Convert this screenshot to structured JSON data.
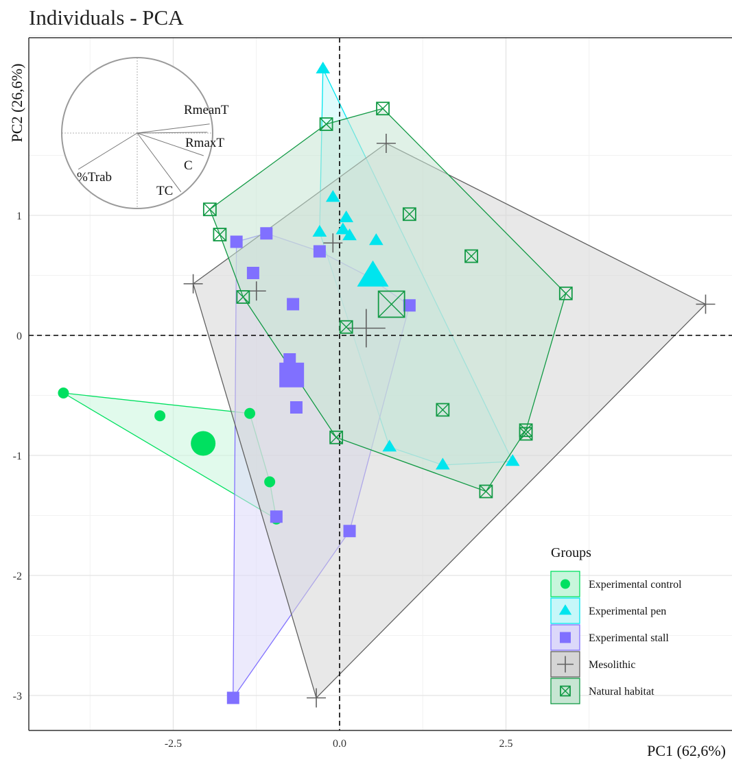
{
  "title": "Individuals - PCA",
  "chart_data": {
    "type": "scatter",
    "title": "Individuals - PCA",
    "xlabel": "PC1 (62,6%)",
    "ylabel": "PC2 (26,6%)",
    "xlim": [
      -4.6,
      6.0
    ],
    "ylim": [
      -3.25,
      2.4
    ],
    "xticks": [
      -2.5,
      0.0,
      2.5
    ],
    "xtick_labels": [
      "-2.5",
      "0.0",
      "2.5"
    ],
    "yticks": [
      1,
      0,
      -1,
      -2,
      -3
    ],
    "ytick_labels": [
      "1",
      "0",
      "-1",
      "-2",
      "-3"
    ],
    "grid": true,
    "legend_title": "Groups",
    "legend_position": "bottom-right",
    "series": [
      {
        "name": "Experimental control",
        "marker": "circle",
        "color": "#00e060",
        "fill": "#c8f6dc",
        "points": [
          [
            -4.15,
            -0.48
          ],
          [
            -2.7,
            -0.67
          ],
          [
            -1.35,
            -0.65
          ],
          [
            -1.05,
            -1.22
          ],
          [
            -0.95,
            -1.53
          ]
        ],
        "hull": [
          [
            -4.15,
            -0.48
          ],
          [
            -1.35,
            -0.65
          ],
          [
            -1.05,
            -1.22
          ],
          [
            -0.95,
            -1.53
          ]
        ],
        "centroid": [
          -2.05,
          -0.9
        ]
      },
      {
        "name": "Experimental pen",
        "marker": "triangle",
        "color": "#00e5ee",
        "fill": "#c6f7f9",
        "points": [
          [
            -0.25,
            2.22
          ],
          [
            -0.1,
            1.15
          ],
          [
            -0.3,
            0.86
          ],
          [
            0.1,
            0.98
          ],
          [
            0.05,
            0.88
          ],
          [
            0.15,
            0.83
          ],
          [
            0.55,
            0.79
          ],
          [
            0.75,
            -0.93
          ],
          [
            1.55,
            -1.08
          ],
          [
            2.6,
            -1.05
          ]
        ],
        "hull": [
          [
            -0.25,
            2.22
          ],
          [
            2.6,
            -1.05
          ],
          [
            1.55,
            -1.08
          ],
          [
            0.75,
            -0.93
          ],
          [
            -0.3,
            0.86
          ]
        ],
        "centroid": [
          0.5,
          0.49
        ]
      },
      {
        "name": "Experimental stall",
        "marker": "square",
        "color": "#8070ff",
        "fill": "#dcd8fa",
        "points": [
          [
            -1.55,
            0.78
          ],
          [
            -1.1,
            0.85
          ],
          [
            -1.3,
            0.52
          ],
          [
            -0.3,
            0.7
          ],
          [
            -0.7,
            0.26
          ],
          [
            1.05,
            0.25
          ],
          [
            -0.75,
            -0.2
          ],
          [
            -0.65,
            -0.6
          ],
          [
            -0.95,
            -1.51
          ],
          [
            0.15,
            -1.63
          ],
          [
            -1.6,
            -3.02
          ]
        ],
        "hull": [
          [
            -1.55,
            0.78
          ],
          [
            -1.1,
            0.85
          ],
          [
            -0.3,
            0.7
          ],
          [
            0.4,
            0.5
          ],
          [
            1.05,
            0.25
          ],
          [
            0.15,
            -1.63
          ],
          [
            -1.6,
            -3.02
          ]
        ],
        "centroid": [
          -0.72,
          -0.33
        ]
      },
      {
        "name": "Mesolithic",
        "marker": "plus",
        "color": "#606060",
        "fill": "#d5d5d5",
        "points": [
          [
            0.7,
            1.6
          ],
          [
            -2.2,
            0.43
          ],
          [
            -0.1,
            0.77
          ],
          [
            -1.25,
            0.37
          ],
          [
            5.5,
            0.26
          ],
          [
            -0.35,
            -3.02
          ]
        ],
        "hull": [
          [
            0.7,
            1.6
          ],
          [
            5.5,
            0.26
          ],
          [
            -0.35,
            -3.02
          ],
          [
            -2.2,
            0.43
          ]
        ],
        "centroid": [
          0.4,
          0.06
        ]
      },
      {
        "name": "Natural habitat",
        "marker": "boxcross",
        "color": "#119944",
        "fill": "#c7e6d3",
        "points": [
          [
            0.65,
            1.89
          ],
          [
            -0.2,
            1.76
          ],
          [
            -1.95,
            1.05
          ],
          [
            -1.8,
            0.84
          ],
          [
            1.05,
            1.01
          ],
          [
            1.98,
            0.66
          ],
          [
            3.4,
            0.35
          ],
          [
            -1.45,
            0.32
          ],
          [
            0.1,
            0.07
          ],
          [
            1.55,
            -0.62
          ],
          [
            2.8,
            -0.79
          ],
          [
            2.8,
            -0.82
          ],
          [
            -0.05,
            -0.85
          ],
          [
            2.2,
            -1.3
          ]
        ],
        "hull": [
          [
            -0.2,
            1.76
          ],
          [
            0.65,
            1.89
          ],
          [
            3.4,
            0.35
          ],
          [
            2.8,
            -0.79
          ],
          [
            2.2,
            -1.3
          ],
          [
            -0.05,
            -0.85
          ],
          [
            -1.45,
            0.32
          ],
          [
            -1.8,
            0.84
          ],
          [
            -1.95,
            1.05
          ]
        ],
        "centroid": [
          0.78,
          0.26
        ]
      }
    ],
    "inset": {
      "type": "correlation-circle",
      "variables": [
        {
          "name": "RmeanT",
          "x": 0.96,
          "y": 0.12
        },
        {
          "name": "RmaxT",
          "x": 0.93,
          "y": 0.01
        },
        {
          "name": "C",
          "x": 0.88,
          "y": -0.3
        },
        {
          "name": "TC",
          "x": 0.58,
          "y": -0.78
        },
        {
          "name": "%Trab",
          "x": -0.78,
          "y": -0.48
        }
      ]
    }
  }
}
